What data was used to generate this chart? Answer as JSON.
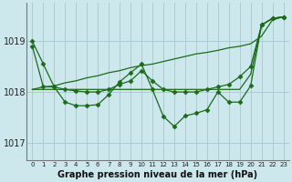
{
  "background_color": "#cde8ec",
  "grid_color": "#a8cdd4",
  "line_color": "#1a6b1a",
  "title": "Graphe pression niveau de la mer (hPa)",
  "ylabel_ticks": [
    1017,
    1018,
    1019
  ],
  "xlim": [
    -0.5,
    23.5
  ],
  "ylim": [
    1016.65,
    1019.75
  ],
  "x_labels": [
    "0",
    "1",
    "2",
    "3",
    "4",
    "5",
    "6",
    "7",
    "8",
    "9",
    "10",
    "11",
    "12",
    "13",
    "14",
    "15",
    "16",
    "17",
    "18",
    "19",
    "20",
    "21",
    "22",
    "23"
  ],
  "series_wiggly": [
    1019.0,
    1018.55,
    1018.1,
    1017.8,
    1017.73,
    1017.73,
    1017.75,
    1017.95,
    1018.2,
    1018.38,
    1018.55,
    1018.05,
    1017.52,
    1017.32,
    1017.53,
    1017.58,
    1017.65,
    1018.0,
    1017.8,
    1017.8,
    1018.12,
    1019.32,
    1019.45,
    1019.48
  ],
  "series_diagonal": [
    1018.05,
    1018.1,
    1018.12,
    1018.18,
    1018.22,
    1018.28,
    1018.32,
    1018.38,
    1018.42,
    1018.48,
    1018.52,
    1018.55,
    1018.6,
    1018.65,
    1018.7,
    1018.75,
    1018.78,
    1018.82,
    1018.87,
    1018.9,
    1018.95,
    1019.1,
    1019.42,
    1019.48
  ],
  "series_flat": [
    1018.05,
    1018.05,
    1018.05,
    1018.05,
    1018.05,
    1018.05,
    1018.05,
    1018.05,
    1018.05,
    1018.05,
    1018.05,
    1018.05,
    1018.05,
    1018.05,
    1018.05,
    1018.05,
    1018.05,
    1018.05,
    1018.05,
    1018.05,
    1018.35,
    1019.32,
    1019.45,
    1019.48
  ],
  "series_mid": [
    1018.9,
    1018.1,
    1018.1,
    1018.05,
    1018.02,
    1018.0,
    1018.0,
    1018.05,
    1018.15,
    1018.22,
    1018.42,
    1018.22,
    1018.05,
    1018.0,
    1018.0,
    1018.0,
    1018.05,
    1018.1,
    1018.15,
    1018.3,
    1018.5,
    1019.32,
    1019.45,
    1019.48
  ]
}
